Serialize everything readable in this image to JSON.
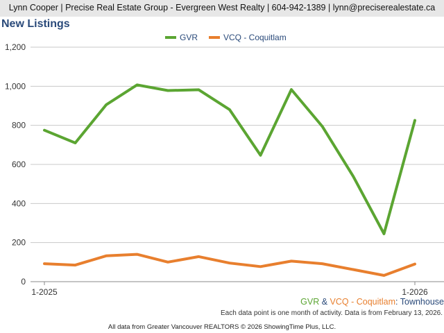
{
  "header": {
    "text": "Lynn Cooper | Precise Real Estate Group - Evergreen West Realty | 604-942-1389 | lynn@preciserealestate.ca"
  },
  "subtitle": {
    "part1": "GVR",
    "amp": " & ",
    "part2": "VCQ - Coquitlam",
    "colon": ": ",
    "part3": "Townhouse"
  },
  "note": "Each data point is one month of activity. Data is from February 13, 2026.",
  "footer": "All data from Greater Vancouver REALTORS © 2026 ShowingTime Plus, LLC.",
  "colors": {
    "gvr": "#5ba532",
    "vcq": "#e87f2e",
    "grid": "#c8c8c8",
    "title": "#2a4a7a"
  },
  "chart_data": {
    "type": "line",
    "title": "New Listings",
    "x": [
      "1-2025",
      "2-2025",
      "3-2025",
      "4-2025",
      "5-2025",
      "6-2025",
      "7-2025",
      "8-2025",
      "9-2025",
      "10-2025",
      "11-2025",
      "12-2025",
      "1-2026"
    ],
    "x_tick_labels": [
      "1-2025",
      "1-2026"
    ],
    "y_ticks": [
      "0",
      "200",
      "400",
      "600",
      "800",
      "1,000",
      "1,200"
    ],
    "ylim": [
      0,
      1200
    ],
    "legend_position": "top-center",
    "grid": true,
    "series": [
      {
        "name": "GVR",
        "color": "#5ba532",
        "values": [
          775,
          710,
          905,
          1007,
          978,
          982,
          880,
          647,
          983,
          795,
          540,
          245,
          825
        ]
      },
      {
        "name": "VCQ - Coquitlam",
        "color": "#e87f2e",
        "values": [
          92,
          85,
          132,
          140,
          100,
          128,
          95,
          77,
          105,
          92,
          62,
          32,
          90
        ]
      }
    ]
  }
}
